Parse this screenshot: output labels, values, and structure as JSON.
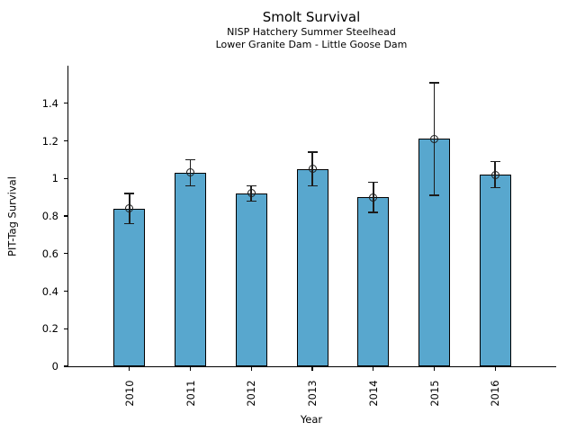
{
  "chart_data": {
    "type": "bar",
    "title": "Smolt Survival",
    "subtitle1": "NISP Hatchery Summer Steelhead",
    "subtitle2": "Lower Granite Dam - Little Goose Dam",
    "xlabel": "Year",
    "ylabel": "PIT-Tag Survival",
    "categories": [
      "2010",
      "2011",
      "2012",
      "2013",
      "2014",
      "2015",
      "2016"
    ],
    "values": [
      0.84,
      1.03,
      0.92,
      1.05,
      0.9,
      1.21,
      1.02
    ],
    "errors": [
      0.08,
      0.07,
      0.04,
      0.09,
      0.08,
      0.3,
      0.07
    ],
    "error_low": [
      0.76,
      0.96,
      0.88,
      0.96,
      0.82,
      0.91,
      0.95
    ],
    "error_high": [
      0.92,
      1.1,
      0.96,
      1.14,
      0.98,
      1.51,
      1.09
    ],
    "ylim": [
      0,
      1.6
    ],
    "yticks": [
      0,
      0.2,
      0.4,
      0.6,
      0.8,
      1.0,
      1.2,
      1.4
    ],
    "ytick_labels": [
      "0",
      "0.2",
      "0.4",
      "0.6",
      "0.8",
      "1",
      "1.2",
      "1.4"
    ],
    "x_tick_rotation": 90,
    "bar_color": "#58a7ce",
    "bar_edge_color": "#000000",
    "errorbar_color": "#1c1c1c",
    "marker": "open-circle",
    "grid": false,
    "legend": null
  }
}
